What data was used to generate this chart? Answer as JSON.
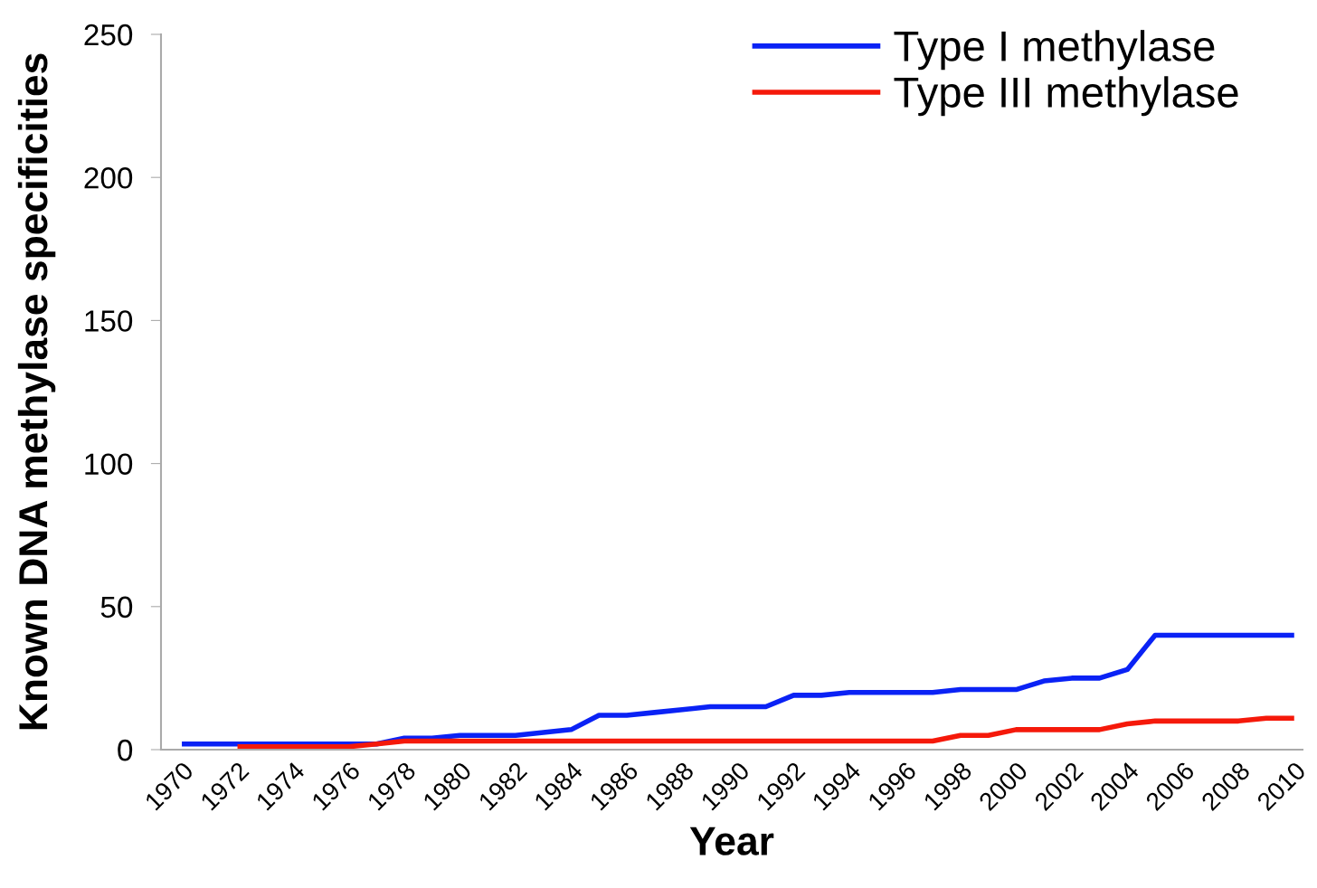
{
  "chart_data": {
    "type": "line",
    "xlabel": "Year",
    "ylabel": "Known DNA methylase specificities",
    "categories": [
      "1970",
      null,
      "1972",
      null,
      "1974",
      null,
      "1976",
      null,
      "1978",
      null,
      "1980",
      null,
      "1982",
      null,
      "1984",
      null,
      "1986",
      null,
      "1988",
      null,
      "1990",
      null,
      "1992",
      null,
      "1994",
      null,
      "1996",
      null,
      "1998",
      null,
      "2000",
      null,
      "2002",
      null,
      "2004",
      null,
      "2006",
      null,
      "2008",
      null,
      "2010"
    ],
    "series": [
      {
        "name": "Type I methylase",
        "color": "#0a22f5",
        "values": [
          2,
          2,
          2,
          2,
          2,
          2,
          2,
          2,
          4,
          4,
          5,
          5,
          5,
          6,
          7,
          12,
          12,
          13,
          14,
          15,
          15,
          15,
          19,
          19,
          20,
          20,
          20,
          20,
          21,
          21,
          21,
          24,
          25,
          25,
          28,
          40,
          40,
          40,
          40,
          40,
          40
        ]
      },
      {
        "name": "Type III methylase",
        "color": "#f5190a",
        "values": [
          null,
          null,
          1,
          1,
          1,
          1,
          1,
          2,
          3,
          3,
          3,
          3,
          3,
          3,
          3,
          3,
          3,
          3,
          3,
          3,
          3,
          3,
          3,
          3,
          3,
          3,
          3,
          3,
          5,
          5,
          7,
          7,
          7,
          7,
          9,
          10,
          10,
          10,
          10,
          11,
          11
        ]
      }
    ],
    "ylim": [
      0,
      250
    ],
    "yticks": [
      0,
      50,
      100,
      150,
      200,
      250
    ],
    "grid": false,
    "legend": "top right",
    "marker": "none",
    "line_style": "solid"
  }
}
